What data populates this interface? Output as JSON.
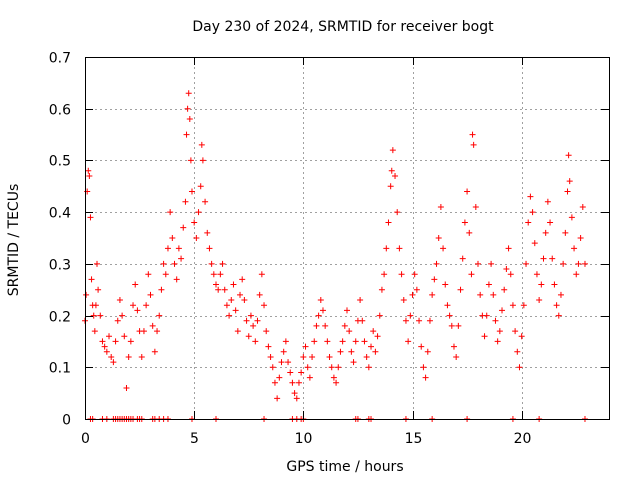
{
  "chart_data": {
    "type": "scatter",
    "title": "Day 230 of 2024, SRMTID for receiver bogt",
    "xlabel": "GPS time / hours",
    "ylabel": "SRMTID / TECUs",
    "xlim": [
      0,
      24
    ],
    "ylim": [
      0,
      0.7
    ],
    "xticks": [
      0,
      5,
      10,
      15,
      20
    ],
    "xtick_labels": [
      "0",
      "5",
      "10",
      "15",
      "20"
    ],
    "yticks": [
      0,
      0.1,
      0.2,
      0.3,
      0.4,
      0.5,
      0.6,
      0.7
    ],
    "ytick_labels": [
      "0",
      "0.1",
      "0.2",
      "0.3",
      "0.4",
      "0.5",
      "0.6",
      "0.7"
    ],
    "grid": true,
    "marker": "+",
    "color": "#ff0000",
    "series": [
      {
        "name": "SRMTID",
        "points": [
          [
            0.0,
            0.19
          ],
          [
            0.05,
            0.24
          ],
          [
            0.1,
            0.44
          ],
          [
            0.15,
            0.48
          ],
          [
            0.2,
            0.47
          ],
          [
            0.25,
            0.39
          ],
          [
            0.3,
            0.27
          ],
          [
            0.35,
            0.22
          ],
          [
            0.4,
            0.2
          ],
          [
            0.45,
            0.17
          ],
          [
            0.5,
            0.22
          ],
          [
            0.55,
            0.3
          ],
          [
            0.6,
            0.25
          ],
          [
            0.7,
            0.2
          ],
          [
            0.8,
            0.15
          ],
          [
            0.9,
            0.14
          ],
          [
            1.0,
            0.13
          ],
          [
            1.1,
            0.16
          ],
          [
            1.2,
            0.12
          ],
          [
            1.3,
            0.11
          ],
          [
            1.4,
            0.15
          ],
          [
            1.5,
            0.19
          ],
          [
            1.6,
            0.23
          ],
          [
            1.7,
            0.2
          ],
          [
            1.8,
            0.16
          ],
          [
            1.9,
            0.06
          ],
          [
            2.0,
            0.12
          ],
          [
            2.1,
            0.15
          ],
          [
            2.2,
            0.22
          ],
          [
            2.3,
            0.26
          ],
          [
            2.4,
            0.21
          ],
          [
            2.5,
            0.17
          ],
          [
            2.6,
            0.12
          ],
          [
            2.7,
            0.17
          ],
          [
            2.8,
            0.22
          ],
          [
            2.9,
            0.28
          ],
          [
            3.0,
            0.24
          ],
          [
            3.1,
            0.18
          ],
          [
            3.2,
            0.13
          ],
          [
            3.3,
            0.17
          ],
          [
            3.4,
            0.2
          ],
          [
            3.5,
            0.25
          ],
          [
            3.6,
            0.3
          ],
          [
            3.7,
            0.28
          ],
          [
            3.8,
            0.33
          ],
          [
            3.9,
            0.4
          ],
          [
            4.0,
            0.35
          ],
          [
            4.1,
            0.3
          ],
          [
            4.2,
            0.27
          ],
          [
            4.3,
            0.33
          ],
          [
            4.4,
            0.31
          ],
          [
            4.5,
            0.37
          ],
          [
            4.6,
            0.42
          ],
          [
            4.65,
            0.55
          ],
          [
            4.7,
            0.6
          ],
          [
            4.75,
            0.63
          ],
          [
            4.8,
            0.58
          ],
          [
            4.85,
            0.5
          ],
          [
            4.9,
            0.44
          ],
          [
            5.0,
            0.38
          ],
          [
            5.1,
            0.35
          ],
          [
            5.2,
            0.4
          ],
          [
            5.3,
            0.45
          ],
          [
            5.35,
            0.53
          ],
          [
            5.4,
            0.5
          ],
          [
            5.5,
            0.42
          ],
          [
            5.6,
            0.36
          ],
          [
            5.7,
            0.33
          ],
          [
            5.8,
            0.3
          ],
          [
            5.9,
            0.28
          ],
          [
            6.0,
            0.26
          ],
          [
            6.1,
            0.25
          ],
          [
            6.2,
            0.28
          ],
          [
            6.3,
            0.3
          ],
          [
            6.4,
            0.25
          ],
          [
            6.5,
            0.22
          ],
          [
            6.6,
            0.2
          ],
          [
            6.7,
            0.23
          ],
          [
            6.8,
            0.26
          ],
          [
            6.9,
            0.21
          ],
          [
            7.0,
            0.17
          ],
          [
            7.1,
            0.24
          ],
          [
            7.2,
            0.27
          ],
          [
            7.3,
            0.23
          ],
          [
            7.4,
            0.19
          ],
          [
            7.5,
            0.16
          ],
          [
            7.6,
            0.2
          ],
          [
            7.7,
            0.18
          ],
          [
            7.8,
            0.15
          ],
          [
            7.9,
            0.19
          ],
          [
            8.0,
            0.24
          ],
          [
            8.1,
            0.28
          ],
          [
            8.2,
            0.22
          ],
          [
            8.3,
            0.17
          ],
          [
            8.4,
            0.14
          ],
          [
            8.5,
            0.12
          ],
          [
            8.6,
            0.1
          ],
          [
            8.7,
            0.07
          ],
          [
            8.8,
            0.04
          ],
          [
            8.9,
            0.08
          ],
          [
            9.0,
            0.11
          ],
          [
            9.1,
            0.13
          ],
          [
            9.2,
            0.15
          ],
          [
            9.3,
            0.11
          ],
          [
            9.4,
            0.09
          ],
          [
            9.5,
            0.07
          ],
          [
            9.6,
            0.05
          ],
          [
            9.7,
            0.04
          ],
          [
            9.8,
            0.07
          ],
          [
            9.9,
            0.09
          ],
          [
            10.0,
            0.12
          ],
          [
            10.1,
            0.14
          ],
          [
            10.2,
            0.1
          ],
          [
            10.3,
            0.08
          ],
          [
            10.4,
            0.12
          ],
          [
            10.5,
            0.15
          ],
          [
            10.6,
            0.18
          ],
          [
            10.7,
            0.2
          ],
          [
            10.8,
            0.23
          ],
          [
            10.9,
            0.21
          ],
          [
            11.0,
            0.18
          ],
          [
            11.1,
            0.15
          ],
          [
            11.2,
            0.12
          ],
          [
            11.3,
            0.1
          ],
          [
            11.4,
            0.08
          ],
          [
            11.5,
            0.07
          ],
          [
            11.6,
            0.1
          ],
          [
            11.7,
            0.13
          ],
          [
            11.8,
            0.15
          ],
          [
            11.9,
            0.18
          ],
          [
            12.0,
            0.21
          ],
          [
            12.1,
            0.17
          ],
          [
            12.2,
            0.13
          ],
          [
            12.3,
            0.11
          ],
          [
            12.4,
            0.15
          ],
          [
            12.5,
            0.19
          ],
          [
            12.6,
            0.23
          ],
          [
            12.7,
            0.19
          ],
          [
            12.8,
            0.15
          ],
          [
            12.9,
            0.12
          ],
          [
            13.0,
            0.1
          ],
          [
            13.1,
            0.14
          ],
          [
            13.2,
            0.17
          ],
          [
            13.3,
            0.13
          ],
          [
            13.4,
            0.16
          ],
          [
            13.5,
            0.2
          ],
          [
            13.6,
            0.25
          ],
          [
            13.7,
            0.28
          ],
          [
            13.8,
            0.33
          ],
          [
            13.9,
            0.38
          ],
          [
            14.0,
            0.45
          ],
          [
            14.05,
            0.48
          ],
          [
            14.1,
            0.52
          ],
          [
            14.2,
            0.47
          ],
          [
            14.3,
            0.4
          ],
          [
            14.4,
            0.33
          ],
          [
            14.5,
            0.28
          ],
          [
            14.6,
            0.23
          ],
          [
            14.7,
            0.19
          ],
          [
            14.8,
            0.15
          ],
          [
            14.9,
            0.2
          ],
          [
            15.0,
            0.24
          ],
          [
            15.1,
            0.28
          ],
          [
            15.2,
            0.25
          ],
          [
            15.3,
            0.19
          ],
          [
            15.4,
            0.14
          ],
          [
            15.5,
            0.1
          ],
          [
            15.6,
            0.08
          ],
          [
            15.7,
            0.13
          ],
          [
            15.8,
            0.19
          ],
          [
            15.9,
            0.24
          ],
          [
            16.0,
            0.27
          ],
          [
            16.1,
            0.3
          ],
          [
            16.2,
            0.35
          ],
          [
            16.3,
            0.41
          ],
          [
            16.4,
            0.33
          ],
          [
            16.5,
            0.26
          ],
          [
            16.6,
            0.22
          ],
          [
            16.7,
            0.2
          ],
          [
            16.8,
            0.18
          ],
          [
            16.9,
            0.14
          ],
          [
            17.0,
            0.12
          ],
          [
            17.1,
            0.18
          ],
          [
            17.2,
            0.25
          ],
          [
            17.3,
            0.31
          ],
          [
            17.4,
            0.38
          ],
          [
            17.5,
            0.44
          ],
          [
            17.6,
            0.36
          ],
          [
            17.7,
            0.28
          ],
          [
            17.75,
            0.55
          ],
          [
            17.8,
            0.53
          ],
          [
            17.9,
            0.41
          ],
          [
            18.0,
            0.3
          ],
          [
            18.1,
            0.24
          ],
          [
            18.2,
            0.2
          ],
          [
            18.3,
            0.16
          ],
          [
            18.4,
            0.2
          ],
          [
            18.5,
            0.26
          ],
          [
            18.6,
            0.3
          ],
          [
            18.7,
            0.24
          ],
          [
            18.8,
            0.19
          ],
          [
            18.9,
            0.15
          ],
          [
            19.0,
            0.17
          ],
          [
            19.1,
            0.21
          ],
          [
            19.2,
            0.25
          ],
          [
            19.3,
            0.29
          ],
          [
            19.4,
            0.33
          ],
          [
            19.5,
            0.28
          ],
          [
            19.6,
            0.22
          ],
          [
            19.7,
            0.17
          ],
          [
            19.8,
            0.13
          ],
          [
            19.9,
            0.1
          ],
          [
            20.0,
            0.16
          ],
          [
            20.1,
            0.22
          ],
          [
            20.2,
            0.3
          ],
          [
            20.3,
            0.38
          ],
          [
            20.4,
            0.43
          ],
          [
            20.5,
            0.4
          ],
          [
            20.6,
            0.34
          ],
          [
            20.7,
            0.28
          ],
          [
            20.8,
            0.23
          ],
          [
            20.9,
            0.26
          ],
          [
            21.0,
            0.31
          ],
          [
            21.1,
            0.36
          ],
          [
            21.2,
            0.42
          ],
          [
            21.3,
            0.38
          ],
          [
            21.4,
            0.31
          ],
          [
            21.5,
            0.26
          ],
          [
            21.6,
            0.22
          ],
          [
            21.7,
            0.2
          ],
          [
            21.8,
            0.24
          ],
          [
            21.9,
            0.3
          ],
          [
            22.0,
            0.36
          ],
          [
            22.1,
            0.44
          ],
          [
            22.15,
            0.51
          ],
          [
            22.2,
            0.46
          ],
          [
            22.3,
            0.39
          ],
          [
            22.4,
            0.33
          ],
          [
            22.5,
            0.28
          ],
          [
            22.6,
            0.3
          ],
          [
            22.7,
            0.35
          ],
          [
            22.8,
            0.41
          ],
          [
            22.9,
            0.3
          ]
        ],
        "zero_points_x": [
          0.25,
          0.35,
          0.8,
          1.0,
          1.3,
          1.4,
          1.5,
          1.6,
          1.7,
          1.8,
          1.9,
          2.0,
          2.1,
          2.2,
          2.4,
          2.5,
          2.6,
          3.1,
          3.2,
          3.4,
          3.6,
          3.8,
          4.9,
          6.0,
          8.2,
          9.5,
          9.7,
          9.9,
          10.0,
          12.4,
          12.5,
          13.0,
          13.1,
          14.7,
          15.9,
          17.5,
          19.6,
          20.8,
          22.9
        ]
      }
    ]
  }
}
